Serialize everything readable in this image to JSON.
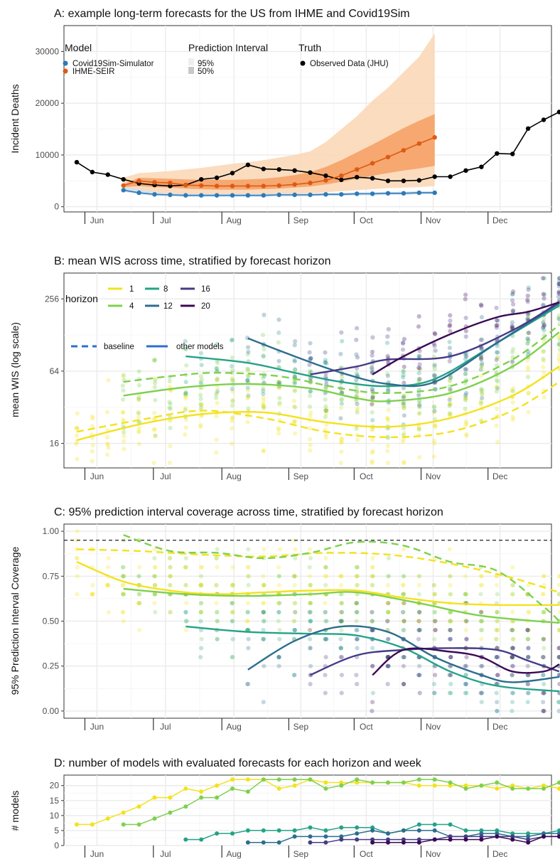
{
  "months": [
    "Jun",
    "Jul",
    "Aug",
    "Sep",
    "Oct",
    "Nov",
    "Dec"
  ],
  "colors": {
    "h1": "#f3e21d",
    "h4": "#7fd04f",
    "h8": "#25a288",
    "h12": "#2c6e8e",
    "h16": "#463b87",
    "h20": "#3b0a55",
    "covid": "#2f79b5",
    "ihme": "#dd5a14",
    "truth": "#000000",
    "ihme95": "#fbd8b7",
    "ihme50": "#f5a46c"
  },
  "chart_data": [
    {
      "id": "A",
      "type": "line",
      "title": "A: example long-term forecasts for the US from IHME and Covid19Sim",
      "ylabel": "Incident Deaths",
      "ylim": [
        -1000,
        35000
      ],
      "yticks": [
        0,
        10000,
        20000,
        30000
      ],
      "ytick_labels": [
        "0",
        "10000",
        "20000",
        "30000"
      ],
      "x_unit": "weeks since mid-May 2020",
      "legend": {
        "model_title": "Model",
        "model_items": [
          "Covid19Sim-Simulator",
          "IHME-SEIR"
        ],
        "pi_title": "Prediction Interval",
        "pi_items": [
          "95%",
          "50%"
        ],
        "truth_title": "Truth",
        "truth_items": [
          "Observed Data (JHU)"
        ]
      },
      "series": [
        {
          "name": "Observed Data (JHU)",
          "color_key": "truth",
          "x": [
            0,
            1,
            2,
            3,
            4,
            5,
            6,
            7,
            8,
            9,
            10,
            11,
            12,
            13,
            14,
            15,
            16,
            17,
            18,
            19,
            20,
            21,
            22,
            23,
            24,
            25,
            26,
            27,
            28,
            29,
            30,
            31
          ],
          "y": [
            8600,
            6700,
            6200,
            5300,
            4500,
            4200,
            4000,
            4200,
            5300,
            5600,
            6500,
            8100,
            7300,
            7200,
            7000,
            6600,
            6000,
            5200,
            5700,
            5500,
            5000,
            5000,
            5100,
            5800,
            5800,
            7000,
            7700,
            10300,
            10200,
            15100,
            16800,
            18300
          ]
        },
        {
          "name": "IHME-SEIR",
          "color_key": "ihme",
          "x": [
            3,
            4,
            5,
            6,
            7,
            8,
            9,
            10,
            11,
            12,
            13,
            14,
            15,
            16,
            17,
            18,
            19,
            20,
            21,
            22,
            23
          ],
          "y": [
            4100,
            5000,
            4700,
            4600,
            4200,
            4100,
            4000,
            4000,
            4000,
            4000,
            4100,
            4300,
            4600,
            5100,
            6000,
            7200,
            8400,
            9600,
            10900,
            12200,
            13400
          ],
          "lo95": [
            3400,
            3000,
            2600,
            2400,
            2300,
            2200,
            2200,
            2200,
            2200,
            2300,
            2400,
            2500,
            2600,
            2800,
            3000,
            3200,
            3400,
            3600,
            3700,
            3800,
            4000
          ],
          "hi95": [
            5600,
            6500,
            6700,
            6900,
            7200,
            7500,
            7900,
            8300,
            8600,
            9000,
            9500,
            10000,
            10700,
            12500,
            15000,
            17500,
            20500,
            23000,
            26000,
            29000,
            33500
          ],
          "lo50": [
            3800,
            4000,
            3800,
            3700,
            3500,
            3400,
            3300,
            3300,
            3300,
            3400,
            3500,
            3700,
            3900,
            4300,
            4800,
            5400,
            6000,
            6500,
            7000,
            7400,
            7900
          ],
          "hi50": [
            4400,
            5600,
            5500,
            5400,
            5300,
            5200,
            5200,
            5200,
            5300,
            5400,
            5700,
            6100,
            6700,
            7700,
            9000,
            10500,
            12000,
            13600,
            15200,
            16600,
            17900
          ]
        },
        {
          "name": "Covid19Sim-Simulator",
          "color_key": "covid",
          "x": [
            3,
            4,
            5,
            6,
            7,
            8,
            9,
            10,
            11,
            12,
            13,
            14,
            15,
            16,
            17,
            18,
            19,
            20,
            21,
            22,
            23
          ],
          "y": [
            3200,
            2700,
            2400,
            2300,
            2200,
            2200,
            2200,
            2200,
            2200,
            2200,
            2300,
            2300,
            2300,
            2400,
            2400,
            2500,
            2500,
            2600,
            2600,
            2700,
            2700
          ],
          "lo95": [
            2900,
            2400,
            2100,
            2000,
            1900,
            1900,
            1900,
            1900,
            1900,
            1900,
            2000,
            2000,
            2000,
            2100,
            2100,
            2200,
            2200,
            2300,
            2300,
            2400,
            2400
          ],
          "hi95": [
            3800,
            3400,
            2800,
            2600,
            2500,
            2500,
            2500,
            2500,
            2500,
            2500,
            2600,
            2600,
            2600,
            2700,
            2700,
            2800,
            2800,
            2900,
            2900,
            3000,
            3000
          ]
        }
      ]
    },
    {
      "id": "B",
      "type": "line",
      "title": "B: mean WIS across time, stratified by forecast horizon",
      "ylabel": "mean WIS (log scale)",
      "scale": "log2",
      "ylim": [
        10,
        420
      ],
      "yticks": [
        16,
        64,
        256
      ],
      "ytick_labels": [
        "16",
        "64",
        "256"
      ],
      "legend": {
        "horizon_title": "horizon",
        "horizons": [
          "1",
          "4",
          "8",
          "12",
          "16",
          "20"
        ],
        "line_items": [
          "baseline",
          "other models"
        ]
      },
      "curves": [
        {
          "horizon": "1",
          "style": "solid",
          "x": [
            0,
            4,
            8,
            12,
            16,
            20,
            24,
            28,
            31
          ],
          "y": [
            17,
            23,
            28,
            29,
            24,
            22,
            26,
            40,
            70
          ]
        },
        {
          "horizon": "1",
          "style": "dashed",
          "x": [
            0,
            4,
            8,
            12,
            16,
            20,
            24,
            28,
            31
          ],
          "y": [
            20,
            25,
            30,
            26,
            20,
            18,
            20,
            30,
            52
          ]
        },
        {
          "horizon": "4",
          "style": "solid",
          "x": [
            3,
            7,
            11,
            15,
            18,
            20,
            24,
            28,
            31
          ],
          "y": [
            40,
            47,
            50,
            46,
            38,
            36,
            42,
            70,
            135
          ]
        },
        {
          "horizon": "4",
          "style": "dashed",
          "x": [
            3,
            6,
            9,
            13,
            17,
            20,
            24,
            28,
            31
          ],
          "y": [
            52,
            58,
            62,
            58,
            46,
            42,
            48,
            80,
            155
          ]
        },
        {
          "horizon": "8",
          "style": "solid",
          "x": [
            7,
            11,
            14,
            17,
            20,
            23,
            27,
            31
          ],
          "y": [
            85,
            75,
            62,
            52,
            48,
            55,
            110,
            225
          ]
        },
        {
          "horizon": "12",
          "style": "solid",
          "x": [
            11,
            14,
            17,
            20,
            23,
            27,
            31
          ],
          "y": [
            120,
            85,
            62,
            50,
            52,
            110,
            235
          ]
        },
        {
          "horizon": "16",
          "style": "solid",
          "x": [
            15,
            18,
            20,
            24,
            28,
            31
          ],
          "y": [
            60,
            70,
            80,
            85,
            140,
            240
          ]
        },
        {
          "horizon": "20",
          "style": "solid",
          "x": [
            19,
            21,
            24,
            27,
            29,
            31
          ],
          "y": [
            60,
            85,
            130,
            180,
            200,
            240
          ]
        }
      ]
    },
    {
      "id": "C",
      "type": "line",
      "title": "C: 95% prediction interval coverage across time, stratified by forecast horizon",
      "ylabel": "95% Prediction Interval Coverage",
      "ylim": [
        -0.04,
        1.04
      ],
      "yticks": [
        0,
        0.25,
        0.5,
        0.75,
        1
      ],
      "ytick_labels": [
        "0.00",
        "0.25",
        "0.50",
        "0.75",
        "1.00"
      ],
      "reference_line": 0.95,
      "curves": [
        {
          "horizon": "1",
          "style": "solid",
          "x": [
            0,
            3,
            6,
            9,
            12,
            15,
            18,
            21,
            24,
            27,
            31
          ],
          "y": [
            0.83,
            0.72,
            0.67,
            0.65,
            0.66,
            0.67,
            0.67,
            0.63,
            0.6,
            0.59,
            0.59
          ]
        },
        {
          "horizon": "1",
          "style": "dashed",
          "x": [
            0,
            4,
            8,
            12,
            16,
            20,
            24,
            28,
            31
          ],
          "y": [
            0.9,
            0.89,
            0.87,
            0.86,
            0.88,
            0.87,
            0.82,
            0.74,
            0.66
          ]
        },
        {
          "horizon": "4",
          "style": "solid",
          "x": [
            3,
            7,
            11,
            15,
            18,
            22,
            26,
            31
          ],
          "y": [
            0.68,
            0.65,
            0.64,
            0.65,
            0.66,
            0.6,
            0.53,
            0.49
          ]
        },
        {
          "horizon": "4",
          "style": "dashed",
          "x": [
            3,
            6,
            9,
            12,
            15,
            18,
            21,
            24,
            27,
            30,
            31
          ],
          "y": [
            0.98,
            0.89,
            0.88,
            0.85,
            0.88,
            0.94,
            0.92,
            0.83,
            0.78,
            0.58,
            0.5
          ]
        },
        {
          "horizon": "8",
          "style": "solid",
          "x": [
            7,
            11,
            15,
            18,
            21,
            24,
            27,
            31
          ],
          "y": [
            0.47,
            0.44,
            0.43,
            0.42,
            0.35,
            0.22,
            0.14,
            0.11
          ]
        },
        {
          "horizon": "12",
          "style": "solid",
          "x": [
            11,
            14,
            17,
            20,
            23,
            26,
            28,
            31
          ],
          "y": [
            0.23,
            0.39,
            0.47,
            0.44,
            0.3,
            0.2,
            0.16,
            0.19
          ]
        },
        {
          "horizon": "16",
          "style": "solid",
          "x": [
            15,
            18,
            21,
            24,
            27,
            29,
            31
          ],
          "y": [
            0.2,
            0.31,
            0.34,
            0.35,
            0.34,
            0.28,
            0.22
          ]
        },
        {
          "horizon": "20",
          "style": "solid",
          "x": [
            19,
            21,
            24,
            26,
            28,
            30,
            31
          ],
          "y": [
            0.2,
            0.34,
            0.33,
            0.3,
            0.22,
            0.22,
            0.26
          ]
        }
      ]
    },
    {
      "id": "D",
      "type": "line",
      "title": "D: number of models with evaluated forecasts for each horizon and week",
      "ylabel": "# models",
      "ylim": [
        0,
        23.5
      ],
      "yticks": [
        0,
        5,
        10,
        15,
        20
      ],
      "ytick_labels": [
        "0",
        "5",
        "10",
        "15",
        "20"
      ],
      "series": [
        {
          "horizon": "1",
          "x": [
            0,
            1,
            2,
            3,
            4,
            5,
            6,
            7,
            8,
            9,
            10,
            11,
            12,
            13,
            14,
            15,
            16,
            17,
            18,
            19,
            20,
            21,
            22,
            23,
            24,
            25,
            26,
            27,
            28,
            29,
            30,
            31
          ],
          "y": [
            7,
            7,
            9,
            11,
            13,
            16,
            16,
            19,
            18,
            20,
            22,
            22,
            22,
            19,
            20,
            22,
            21,
            21,
            21,
            21,
            21,
            21,
            20,
            20,
            20,
            20,
            20,
            19,
            20,
            19,
            20,
            19
          ]
        },
        {
          "horizon": "4",
          "x": [
            3,
            4,
            5,
            6,
            7,
            8,
            9,
            10,
            11,
            12,
            13,
            14,
            15,
            16,
            17,
            18,
            19,
            20,
            21,
            22,
            23,
            24,
            25,
            26,
            27,
            28,
            29,
            30,
            31
          ],
          "y": [
            7,
            7,
            9,
            11,
            13,
            16,
            16,
            19,
            18,
            22,
            22,
            22,
            22,
            19,
            20,
            22,
            21,
            21,
            21,
            22,
            22,
            21,
            19,
            20,
            21,
            19,
            19,
            19,
            21
          ]
        },
        {
          "horizon": "8",
          "x": [
            7,
            8,
            9,
            10,
            11,
            12,
            13,
            14,
            15,
            16,
            17,
            18,
            19,
            20,
            21,
            22,
            23,
            24,
            25,
            26,
            27,
            28,
            29,
            30,
            31
          ],
          "y": [
            2,
            2,
            4,
            4,
            5,
            5,
            5,
            5,
            6,
            5,
            6,
            6,
            6,
            4,
            5,
            7,
            7,
            7,
            5,
            5,
            5,
            4,
            4,
            4,
            5
          ]
        },
        {
          "horizon": "12",
          "x": [
            11,
            12,
            13,
            14,
            15,
            16,
            17,
            18,
            19,
            20,
            21,
            22,
            23,
            24,
            25,
            26,
            27,
            28,
            29,
            30,
            31
          ],
          "y": [
            1,
            1,
            1,
            3,
            3,
            3,
            3,
            4,
            5,
            4,
            5,
            5,
            5,
            3,
            3,
            4,
            4,
            3,
            3,
            4,
            4
          ]
        },
        {
          "horizon": "16",
          "x": [
            15,
            16,
            17,
            18,
            19,
            20,
            21,
            22,
            23,
            24,
            25,
            26,
            27,
            28,
            29,
            30,
            31
          ],
          "y": [
            1,
            1,
            2,
            2,
            2,
            2,
            2,
            2,
            2,
            3,
            3,
            3,
            3,
            3,
            2,
            3,
            3
          ]
        },
        {
          "horizon": "20",
          "x": [
            19,
            20,
            21,
            22,
            23,
            24,
            25,
            26,
            27,
            28,
            29,
            30,
            31
          ],
          "y": [
            1,
            1,
            1,
            1,
            2,
            2,
            2,
            2,
            3,
            2,
            1,
            3,
            3
          ]
        }
      ]
    }
  ]
}
